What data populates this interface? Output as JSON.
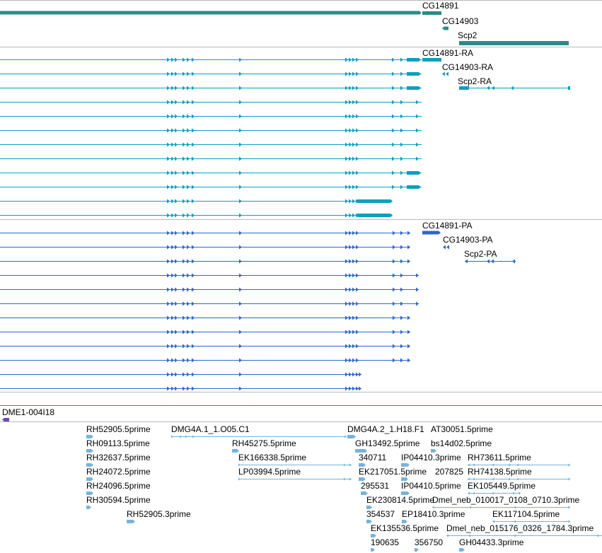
{
  "genes": [
    {
      "name": "CG14891"
    },
    {
      "name": "CG14903"
    },
    {
      "name": "Scp2"
    }
  ],
  "transcripts_ra": [
    {
      "name": "CG14891-RA"
    },
    {
      "name": "CG14903-RA"
    },
    {
      "name": "Scp2-RA"
    }
  ],
  "transcripts_pa": [
    {
      "name": "CG14891-PA"
    },
    {
      "name": "CG14903-PA"
    },
    {
      "name": "Scp2-PA"
    }
  ],
  "clone": {
    "name": "DME1-004I18"
  },
  "ests": [
    {
      "name": "RH52905.5prime"
    },
    {
      "name": "DMG4A.1_1.O05.C1"
    },
    {
      "name": "DMG4A.2_1.H18.F1"
    },
    {
      "name": "AT30051.5prime"
    },
    {
      "name": "RH09113.5prime"
    },
    {
      "name": "RH45275.5prime"
    },
    {
      "name": "GH13492.5prime"
    },
    {
      "name": "bs14d02.5prime"
    },
    {
      "name": "RH32637.5prime"
    },
    {
      "name": "EK166338.5prime"
    },
    {
      "name": "340711"
    },
    {
      "name": "IP04410.3prime"
    },
    {
      "name": "RH73611.5prime"
    },
    {
      "name": "RH24072.5prime"
    },
    {
      "name": "LP03994.5prime"
    },
    {
      "name": "EK217051.5prime"
    },
    {
      "name": "207825"
    },
    {
      "name": "RH74138.5prime"
    },
    {
      "name": "RH24096.5prime"
    },
    {
      "name": "295531"
    },
    {
      "name": "IP04410.5prime"
    },
    {
      "name": "EK105449.5prime"
    },
    {
      "name": "RH30594.5prime"
    },
    {
      "name": "EK230814.5prime"
    },
    {
      "name": "Dmel_neb_010017_0108_0710.3prime"
    },
    {
      "name": "RH52905.3prime"
    },
    {
      "name": "354537"
    },
    {
      "name": "EP18410.3prime"
    },
    {
      "name": "EK117104.5prime"
    },
    {
      "name": "EK135536.5prime"
    },
    {
      "name": "Dmel_neb_015176_0326_1784.3prime"
    },
    {
      "name": "190635"
    },
    {
      "name": "356750"
    },
    {
      "name": "GH04433.3prime"
    }
  ],
  "colors": {
    "gene": "#2e8a89",
    "transcript": "#0c9fbf",
    "protein": "#2f66cc",
    "est": "#76b3dd",
    "clone": "#6a46b8",
    "separator": "#b8b8b8",
    "clone_line": "#7a5cc0"
  }
}
